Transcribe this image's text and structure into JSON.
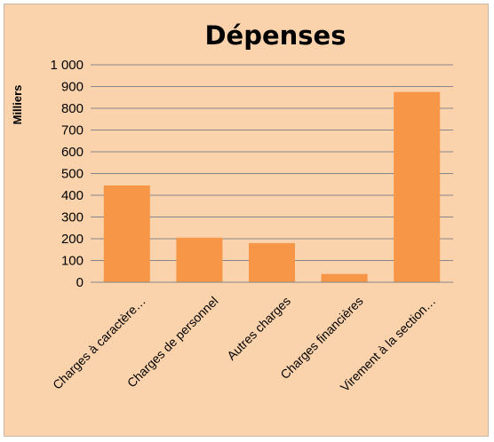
{
  "chart_data": {
    "type": "bar",
    "title": "Dépenses",
    "xlabel": "",
    "ylabel": "Milliers",
    "ylim": [
      0,
      1000
    ],
    "yticks": [
      0,
      100,
      200,
      300,
      400,
      500,
      600,
      700,
      800,
      900,
      1000
    ],
    "ytick_labels": [
      "0",
      "100",
      "200",
      "300",
      "400",
      "500",
      "600",
      "700",
      "800",
      "900",
      "1 000"
    ],
    "categories": [
      "Charges à caractère…",
      "Charges de personnel",
      "Autres charges",
      "Charges financières",
      "Virement à la section…"
    ],
    "values": [
      445,
      205,
      180,
      38,
      875
    ],
    "grid": true,
    "legend": "none",
    "bar_color": "#f79646",
    "grid_color": "#868686"
  }
}
